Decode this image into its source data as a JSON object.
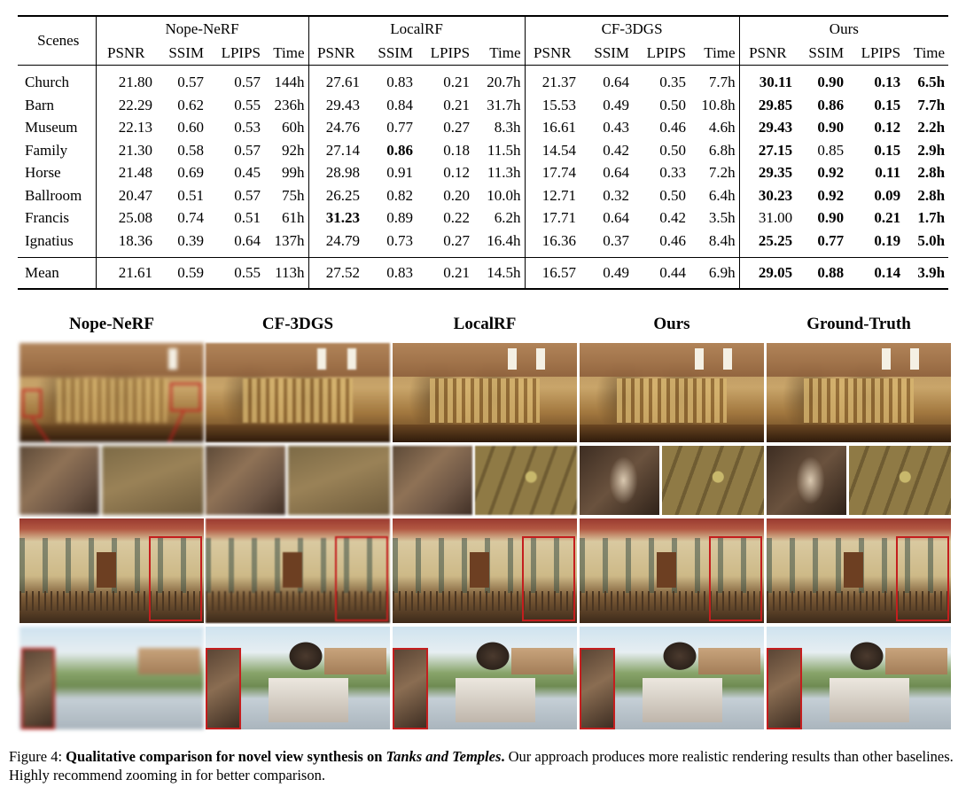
{
  "table": {
    "scenes_header": "Scenes",
    "methods": [
      "Nope-NeRF",
      "LocalRF",
      "CF-3DGS",
      "Ours"
    ],
    "metrics": [
      "PSNR",
      "SSIM",
      "LPIPS",
      "Time"
    ],
    "rows": [
      {
        "scene": "Church",
        "vals": [
          "21.80",
          "0.57",
          "0.57",
          "144h",
          "27.61",
          "0.83",
          "0.21",
          "20.7h",
          "21.37",
          "0.64",
          "0.35",
          "7.7h",
          "30.11",
          "0.90",
          "0.13",
          "6.5h"
        ],
        "bold": [
          12,
          13,
          14,
          15
        ]
      },
      {
        "scene": "Barn",
        "vals": [
          "22.29",
          "0.62",
          "0.55",
          "236h",
          "29.43",
          "0.84",
          "0.21",
          "31.7h",
          "15.53",
          "0.49",
          "0.50",
          "10.8h",
          "29.85",
          "0.86",
          "0.15",
          "7.7h"
        ],
        "bold": [
          12,
          13,
          14,
          15
        ]
      },
      {
        "scene": "Museum",
        "vals": [
          "22.13",
          "0.60",
          "0.53",
          "60h",
          "24.76",
          "0.77",
          "0.27",
          "8.3h",
          "16.61",
          "0.43",
          "0.46",
          "4.6h",
          "29.43",
          "0.90",
          "0.12",
          "2.2h"
        ],
        "bold": [
          12,
          13,
          14,
          15
        ]
      },
      {
        "scene": "Family",
        "vals": [
          "21.30",
          "0.58",
          "0.57",
          "92h",
          "27.14",
          "0.86",
          "0.18",
          "11.5h",
          "14.54",
          "0.42",
          "0.50",
          "6.8h",
          "27.15",
          "0.85",
          "0.15",
          "2.9h"
        ],
        "bold": [
          5,
          12,
          14,
          15
        ]
      },
      {
        "scene": "Horse",
        "vals": [
          "21.48",
          "0.69",
          "0.45",
          "99h",
          "28.98",
          "0.91",
          "0.12",
          "11.3h",
          "17.74",
          "0.64",
          "0.33",
          "7.2h",
          "29.35",
          "0.92",
          "0.11",
          "2.8h"
        ],
        "bold": [
          12,
          13,
          14,
          15
        ]
      },
      {
        "scene": "Ballroom",
        "vals": [
          "20.47",
          "0.51",
          "0.57",
          "75h",
          "26.25",
          "0.82",
          "0.20",
          "10.0h",
          "12.71",
          "0.32",
          "0.50",
          "6.4h",
          "30.23",
          "0.92",
          "0.09",
          "2.8h"
        ],
        "bold": [
          12,
          13,
          14,
          15
        ]
      },
      {
        "scene": "Francis",
        "vals": [
          "25.08",
          "0.74",
          "0.51",
          "61h",
          "31.23",
          "0.89",
          "0.22",
          "6.2h",
          "17.71",
          "0.64",
          "0.42",
          "3.5h",
          "31.00",
          "0.90",
          "0.21",
          "1.7h"
        ],
        "bold": [
          4,
          13,
          14,
          15
        ]
      },
      {
        "scene": "Ignatius",
        "vals": [
          "18.36",
          "0.39",
          "0.64",
          "137h",
          "24.79",
          "0.73",
          "0.27",
          "16.4h",
          "16.36",
          "0.37",
          "0.46",
          "8.4h",
          "25.25",
          "0.77",
          "0.19",
          "5.0h"
        ],
        "bold": [
          12,
          13,
          14,
          15
        ]
      }
    ],
    "mean": {
      "scene": "Mean",
      "vals": [
        "21.61",
        "0.59",
        "0.55",
        "113h",
        "27.52",
        "0.83",
        "0.21",
        "14.5h",
        "16.57",
        "0.49",
        "0.44",
        "6.9h",
        "29.05",
        "0.88",
        "0.14",
        "3.9h"
      ],
      "bold": [
        12,
        13,
        14,
        15
      ]
    }
  },
  "figure": {
    "columns": [
      "Nope-NeRF",
      "CF-3DGS",
      "LocalRF",
      "Ours",
      "Ground-Truth"
    ],
    "highlight_color": "#c41e1e"
  },
  "caption": {
    "label": "Figure 4:",
    "bold": "Qualitative comparison for novel view synthesis on",
    "bold_italic": "Tanks and Temples",
    "period": ".",
    "text": "Our approach produces more realistic rendering results than other baselines. Highly recommend zooming in for better comparison."
  }
}
